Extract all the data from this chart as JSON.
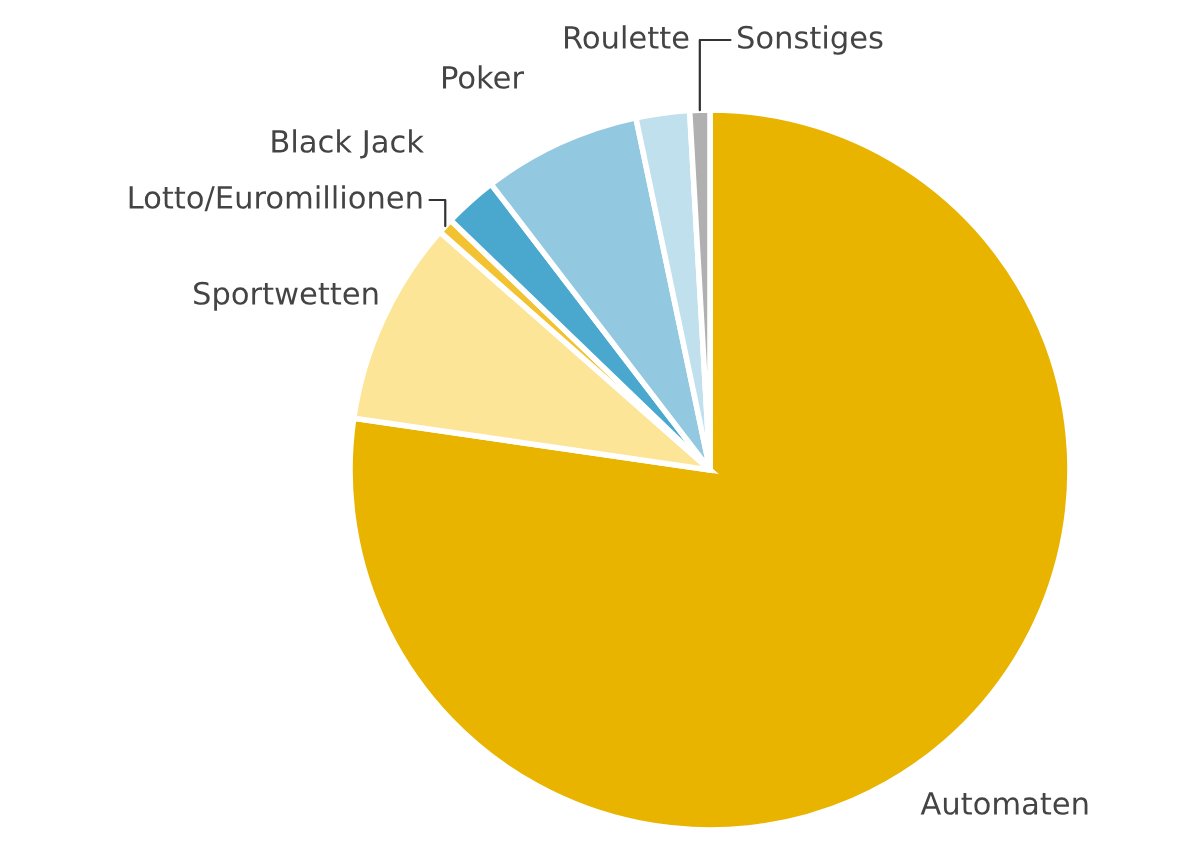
{
  "chart_data": {
    "type": "pie",
    "categories": [
      "Automaten",
      "Sportwetten",
      "Lotto/Euromillionen",
      "Black Jack",
      "Poker",
      "Roulette",
      "Sonstiges"
    ],
    "values": [
      77.3,
      9.2,
      0.7,
      2.4,
      7.1,
      2.4,
      0.9
    ],
    "colors": [
      "#e8b400",
      "#fde597",
      "#f2c230",
      "#4aa8cf",
      "#93c9e0",
      "#bfe0ec",
      "#b0b0b0"
    ],
    "legend": false
  }
}
